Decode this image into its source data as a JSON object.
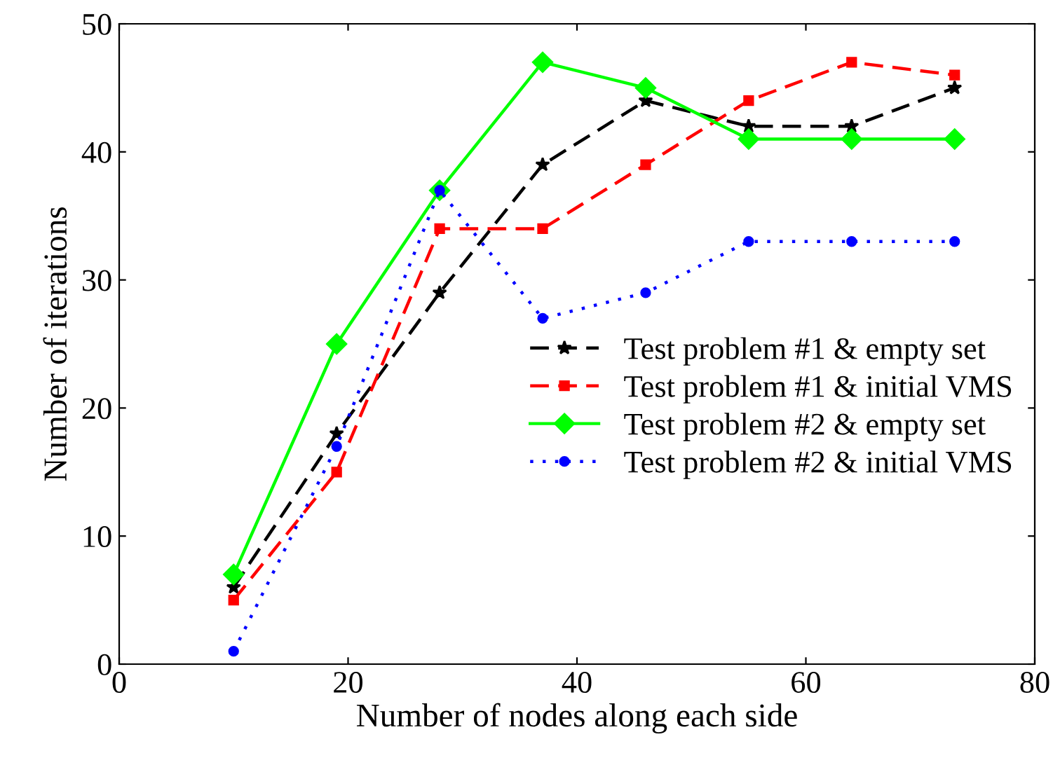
{
  "chart_data": {
    "type": "line",
    "xlabel": "Number of nodes along each side",
    "ylabel": "Number of iterations",
    "x": [
      10,
      19,
      28,
      37,
      46,
      55,
      64,
      73
    ],
    "series": [
      {
        "name": "Test problem #1 & empty set",
        "color": "#000000",
        "marker": "star",
        "line_style": "dashed",
        "values": [
          6,
          18,
          29,
          39,
          44,
          42,
          42,
          45
        ]
      },
      {
        "name": "Test problem #1 & initial VMS",
        "color": "#ff0000",
        "marker": "square",
        "line_style": "dashed",
        "values": [
          5,
          15,
          34,
          34,
          39,
          44,
          47,
          46
        ]
      },
      {
        "name": "Test problem #2 & empty set",
        "color": "#00ff00",
        "marker": "diamond",
        "line_style": "solid",
        "values": [
          7,
          25,
          37,
          47,
          45,
          41,
          41,
          41
        ]
      },
      {
        "name": "Test problem #2 & initial VMS",
        "color": "#0000ff",
        "marker": "circle",
        "line_style": "dotted",
        "values": [
          1,
          17,
          37,
          27,
          29,
          33,
          33,
          33
        ]
      }
    ],
    "xlim": [
      0,
      80
    ],
    "xticks": [
      0,
      20,
      40,
      60,
      80
    ],
    "ylim": [
      0,
      50
    ],
    "yticks": [
      0,
      10,
      20,
      30,
      40,
      50
    ],
    "grid": false,
    "legend": "right"
  }
}
